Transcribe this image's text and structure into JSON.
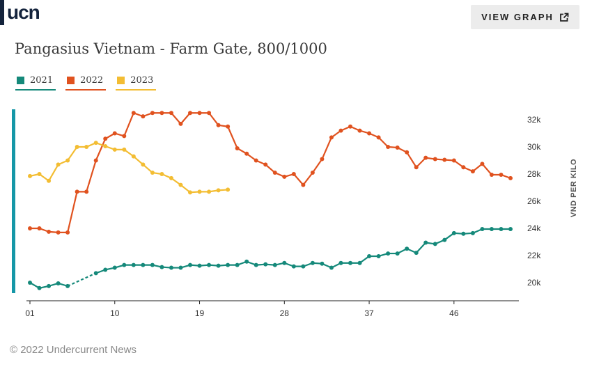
{
  "header": {
    "logo_text": "ucn",
    "view_button_label": "VIEW GRAPH",
    "view_button_icon": "external-link-icon"
  },
  "title": "Pangasius Vietnam - Farm Gate, 800/1000",
  "legend": [
    {
      "label": "2021",
      "color": "#15897a"
    },
    {
      "label": "2022",
      "color": "#e0521f"
    },
    {
      "label": "2023",
      "color": "#f3bd33"
    }
  ],
  "footer": "© 2022 Undercurrent News",
  "chart_data": {
    "type": "line",
    "title": "Pangasius Vietnam - Farm Gate, 800/1000",
    "xlabel": "",
    "ylabel": "VND PER KILO",
    "x_ticks": [
      "01",
      "10",
      "19",
      "28",
      "37",
      "46"
    ],
    "x_tick_values": [
      1,
      10,
      19,
      28,
      37,
      46
    ],
    "xlim": [
      1,
      52
    ],
    "y_ticks": [
      "20k",
      "22k",
      "24k",
      "26k",
      "28k",
      "30k",
      "32k"
    ],
    "y_tick_values": [
      20000,
      22000,
      24000,
      26000,
      28000,
      30000,
      32000
    ],
    "ylim": [
      19000,
      33000
    ],
    "y_axis_position": "right",
    "grid": false,
    "legend_position": "top-left",
    "series": [
      {
        "name": "2021",
        "color": "#15897a",
        "values": [
          20000,
          19600,
          19750,
          19950,
          19750,
          null,
          null,
          20700,
          20950,
          21100,
          21300,
          21300,
          21300,
          21300,
          21150,
          21100,
          21100,
          21300,
          21250,
          21300,
          21250,
          21300,
          21300,
          21550,
          21300,
          21350,
          21300,
          21450,
          21200,
          21200,
          21450,
          21400,
          21100,
          21450,
          21450,
          21450,
          21950,
          21950,
          22150,
          22150,
          22500,
          22200,
          22950,
          22850,
          23150,
          23650,
          23600,
          23650,
          23950,
          23950,
          23950,
          23950
        ]
      },
      {
        "name": "2022",
        "color": "#e0521f",
        "values": [
          24000,
          24000,
          23750,
          23700,
          23700,
          26700,
          26700,
          29000,
          30600,
          31000,
          30800,
          32500,
          32250,
          32500,
          32500,
          32500,
          31700,
          32500,
          32500,
          32500,
          31600,
          31500,
          29900,
          29500,
          29000,
          28700,
          28100,
          27800,
          28000,
          27200,
          28100,
          29100,
          30700,
          31200,
          31500,
          31200,
          31000,
          30700,
          30000,
          29950,
          29600,
          28500,
          29200,
          29100,
          29050,
          29000,
          28500,
          28200,
          28750,
          27950,
          27950,
          27700
        ]
      },
      {
        "name": "2023",
        "color": "#f3bd33",
        "values": [
          27850,
          28000,
          27500,
          28700,
          29000,
          30000,
          30000,
          30300,
          30050,
          29800,
          29800,
          29300,
          28700,
          28100,
          28000,
          27700,
          27200,
          26650,
          26700,
          26700,
          26800,
          26850
        ]
      }
    ]
  }
}
